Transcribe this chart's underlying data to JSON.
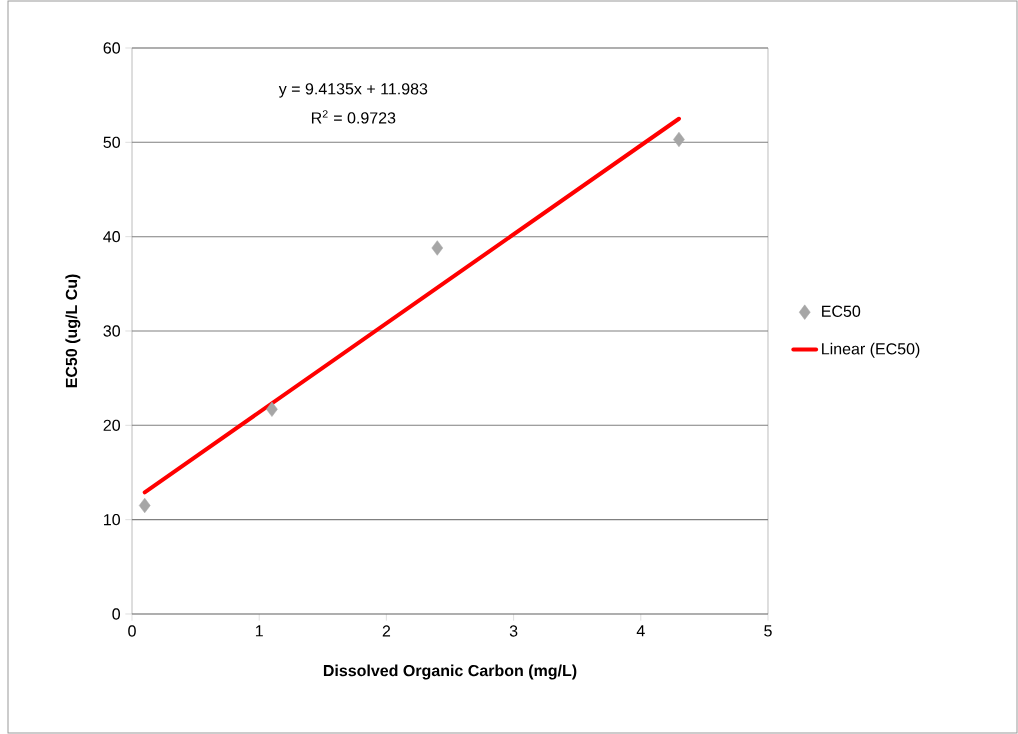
{
  "chart_data": {
    "type": "scatter",
    "xlabel": "Dissolved Organic Carbon (mg/L)",
    "ylabel": "EC50 (ug/L Cu)",
    "x": [
      0.1,
      1.1,
      2.4,
      4.3
    ],
    "series": [
      {
        "name": "EC50",
        "marker": "diamond",
        "color": "#a6a6a6",
        "values": [
          11.5,
          21.7,
          38.8,
          50.3
        ]
      },
      {
        "name": "Linear (EC50)",
        "type": "line",
        "marker": "none",
        "color": "#ff0000",
        "x": [
          0.1,
          4.3
        ],
        "values": [
          12.9,
          52.5
        ]
      }
    ],
    "annotations": [
      "y = 9.4135x + 11.983",
      "R$^{2}$ = 0.9723"
    ],
    "xlim": [
      0,
      5
    ],
    "ylim": [
      0,
      60
    ],
    "xticks": [
      0,
      1,
      2,
      3,
      4,
      5
    ],
    "yticks": [
      0,
      10,
      20,
      30,
      40,
      50,
      60
    ],
    "grid": "y",
    "legend": "right"
  }
}
